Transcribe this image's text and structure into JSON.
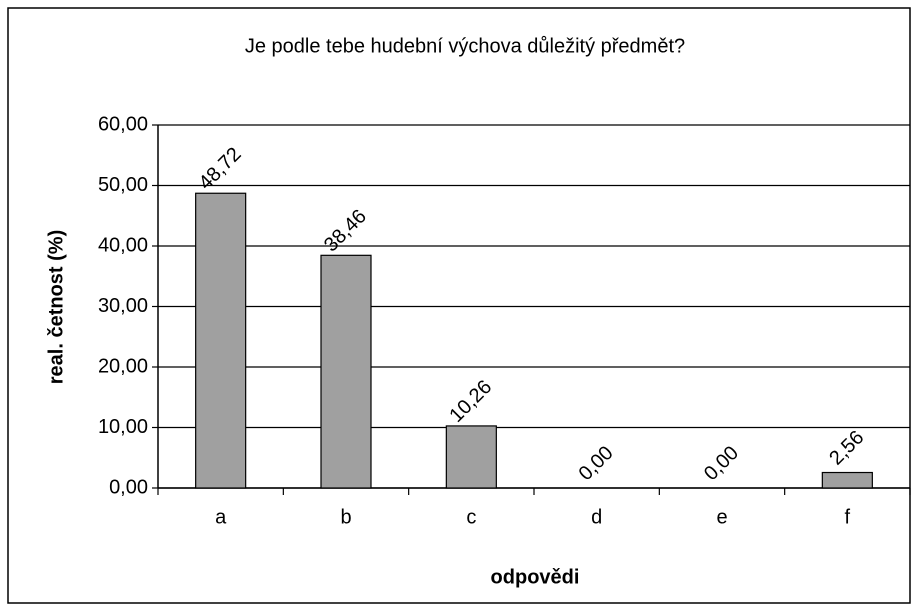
{
  "chart_data": {
    "type": "bar",
    "title": "Je podle tebe hudební výchova důležitý předmět?",
    "x_label": "odpovědi",
    "y_label": "real. četnost (%)",
    "categories": [
      "a",
      "b",
      "c",
      "d",
      "e",
      "f"
    ],
    "values": [
      48.72,
      38.46,
      10.26,
      0,
      0,
      2.56
    ],
    "value_labels": [
      "48,72",
      "38,46",
      "10,26",
      "0,00",
      "0,00",
      "2,56"
    ],
    "color": "#a0a0a0",
    "ylim": [
      0,
      60
    ],
    "yticks": [
      {
        "value": 0,
        "label": "0,00"
      },
      {
        "value": 10,
        "label": "10,00"
      },
      {
        "value": 20,
        "label": "20,00"
      },
      {
        "value": 30,
        "label": "30,00"
      },
      {
        "value": 40,
        "label": "40,00"
      },
      {
        "value": 50,
        "label": "50,00"
      },
      {
        "value": 60,
        "label": "60,00"
      }
    ],
    "grid": true
  }
}
